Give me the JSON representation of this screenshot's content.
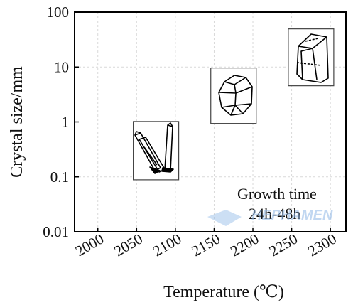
{
  "chart_data": {
    "type": "scatter",
    "xlabel": "Temperature (℃)",
    "ylabel": "Crystal size/mm",
    "x_ticks": [
      "2000",
      "2050",
      "2100",
      "2150",
      "2200",
      "2250",
      "2300"
    ],
    "y_ticks": [
      "0.01",
      "0.1",
      "1",
      "10",
      "100"
    ],
    "xlim": [
      1970,
      2320
    ],
    "ylim": [
      0.01,
      100
    ],
    "y_scale": "log",
    "grid": true,
    "points": [
      {
        "x": 2075,
        "y": 0.3,
        "crystal": "needle-like-crystal"
      },
      {
        "x": 2175,
        "y": 3,
        "crystal": "polyhedral-crystal"
      },
      {
        "x": 2275,
        "y": 15,
        "crystal": "prismatic-crystal"
      }
    ],
    "annotation": {
      "line1": "Growth time",
      "line2": "24h-48h"
    }
  },
  "watermark": "HEPHAMEN"
}
